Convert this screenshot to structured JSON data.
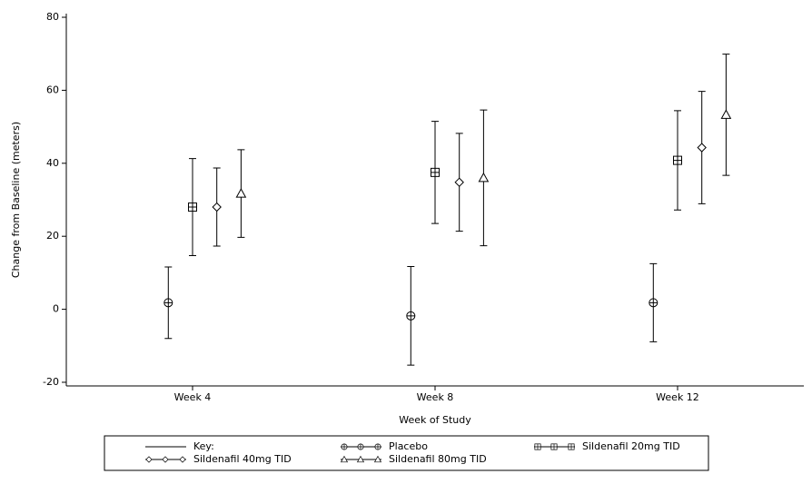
{
  "chart_data": {
    "type": "errorbar",
    "x_label": "Week of Study",
    "y_label": "Change from Baseline (meters)",
    "categories": [
      "Week 4",
      "Week 8",
      "Week 12"
    ],
    "ylim": [
      -21,
      81
    ],
    "yticks": [
      -20,
      0,
      20,
      40,
      60,
      80
    ],
    "legend_title": "Key:",
    "series": [
      {
        "name": "Placebo",
        "marker": "circle",
        "color": "#000000",
        "values": [
          1.8,
          -1.8,
          1.8
        ],
        "errors": [
          9.8,
          13.5,
          10.7
        ]
      },
      {
        "name": "Sildenafil 20mg TID",
        "marker": "square",
        "color": "#000000",
        "values": [
          28,
          37.5,
          40.8
        ],
        "errors": [
          13.3,
          14,
          13.6
        ]
      },
      {
        "name": "Sildenafil 40mg TID",
        "marker": "diamond",
        "color": "#000000",
        "values": [
          28,
          34.8,
          44.3
        ],
        "errors": [
          10.7,
          13.4,
          15.4
        ]
      },
      {
        "name": "Sildenafil 80mg TID",
        "marker": "triangle",
        "color": "#000000",
        "values": [
          31.7,
          36,
          53.3
        ],
        "errors": [
          12,
          18.6,
          16.6
        ]
      }
    ]
  }
}
